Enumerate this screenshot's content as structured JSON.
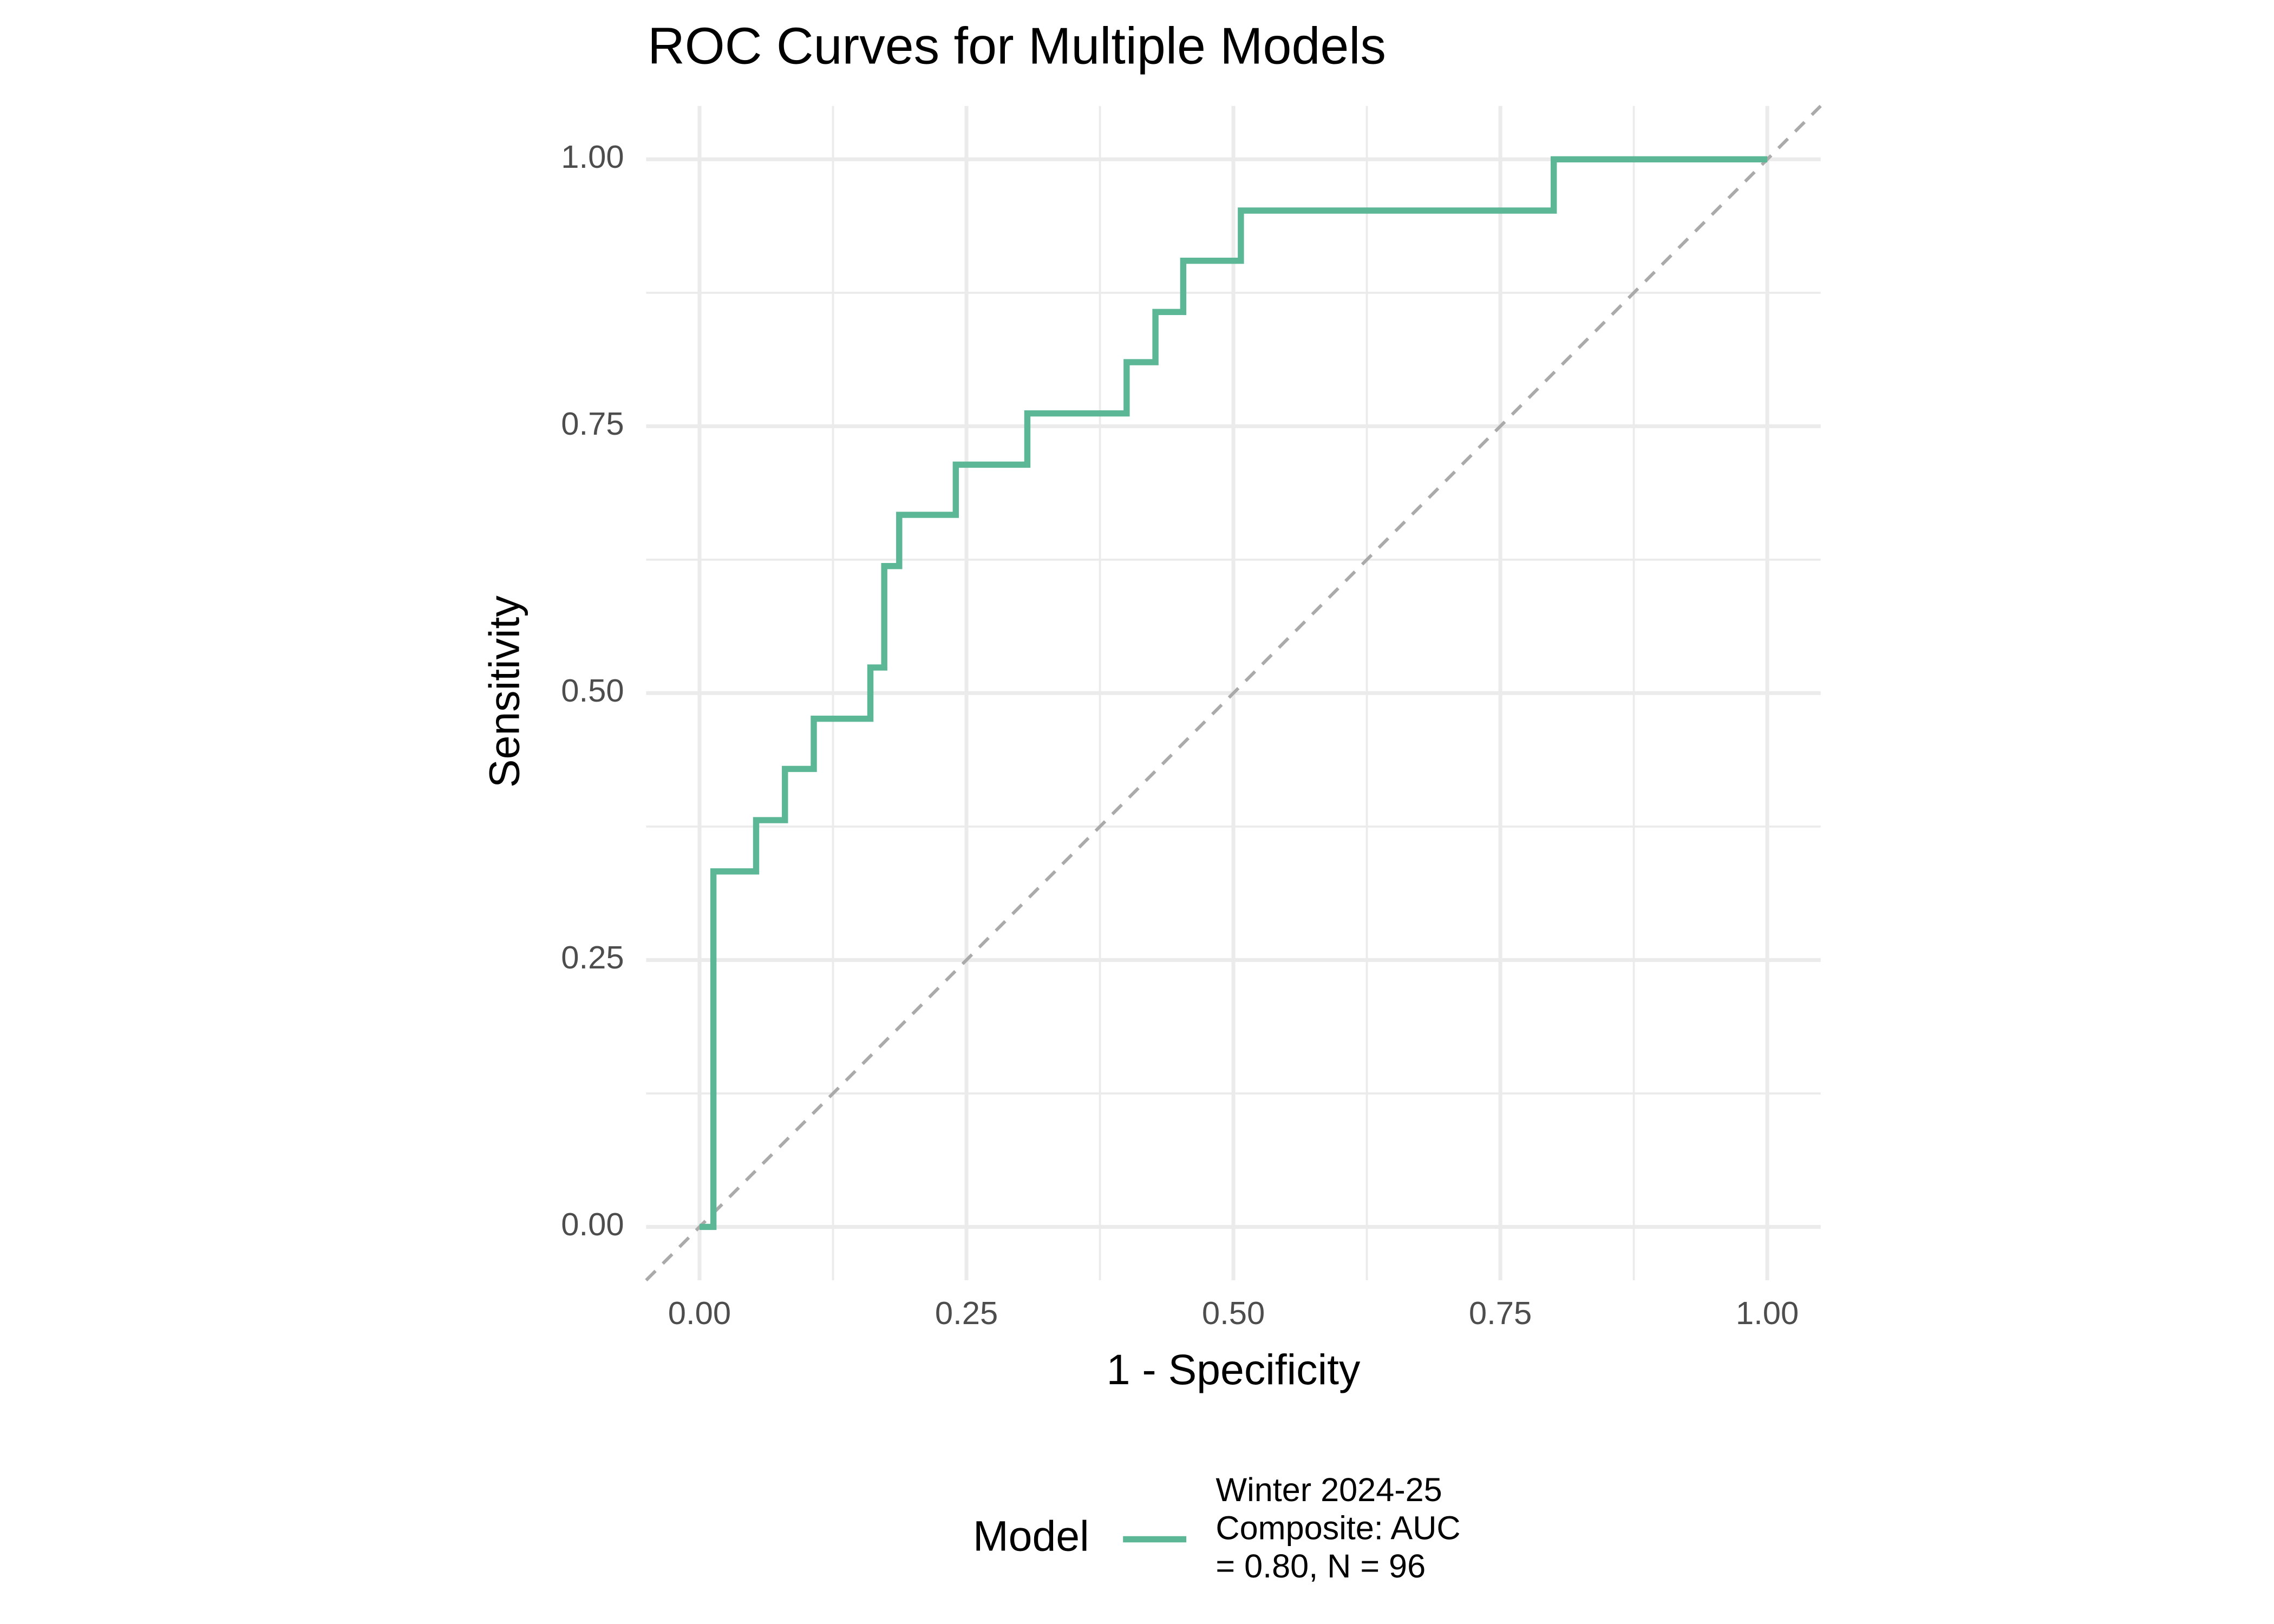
{
  "chart_data": {
    "type": "line",
    "title": "ROC Curves for Multiple Models",
    "x_label": "1 - Specificity",
    "y_label": "Sensitivity",
    "legend_title": "Model",
    "legend_position": "bottom",
    "x": [
      0,
      0.013,
      0.013,
      0.053,
      0.053,
      0.08,
      0.08,
      0.107,
      0.107,
      0.16,
      0.16,
      0.173,
      0.173,
      0.187,
      0.187,
      0.24,
      0.24,
      0.307,
      0.307,
      0.4,
      0.4,
      0.427,
      0.427,
      0.453,
      0.453,
      0.507,
      0.507,
      0.8,
      0.8,
      1.0
    ],
    "series": [
      {
        "name": "Winter 2024-25\nComposite: AUC\n= 0.80, N = 96",
        "color": "#5bb795",
        "values": [
          0,
          0,
          0.333,
          0.333,
          0.381,
          0.381,
          0.429,
          0.429,
          0.476,
          0.476,
          0.524,
          0.524,
          0.619,
          0.619,
          0.667,
          0.667,
          0.714,
          0.714,
          0.762,
          0.762,
          0.81,
          0.81,
          0.857,
          0.857,
          0.905,
          0.905,
          0.952,
          0.952,
          1.0,
          1.0
        ]
      }
    ],
    "xlim": [
      -0.05,
      1.05
    ],
    "ylim": [
      -0.05,
      1.05
    ],
    "xticks": [
      {
        "value": 0,
        "label": "0.00"
      },
      {
        "value": 0.25,
        "label": "0.25"
      },
      {
        "value": 0.5,
        "label": "0.50"
      },
      {
        "value": 0.75,
        "label": "0.75"
      },
      {
        "value": 1,
        "label": "1.00"
      }
    ],
    "yticks": [
      {
        "value": 0,
        "label": "0.00"
      },
      {
        "value": 0.25,
        "label": "0.25"
      },
      {
        "value": 0.5,
        "label": "0.50"
      },
      {
        "value": 0.75,
        "label": "0.75"
      },
      {
        "value": 1,
        "label": "1.00"
      }
    ],
    "grid": true,
    "minor_grid": true,
    "diagonal_reference": true
  }
}
